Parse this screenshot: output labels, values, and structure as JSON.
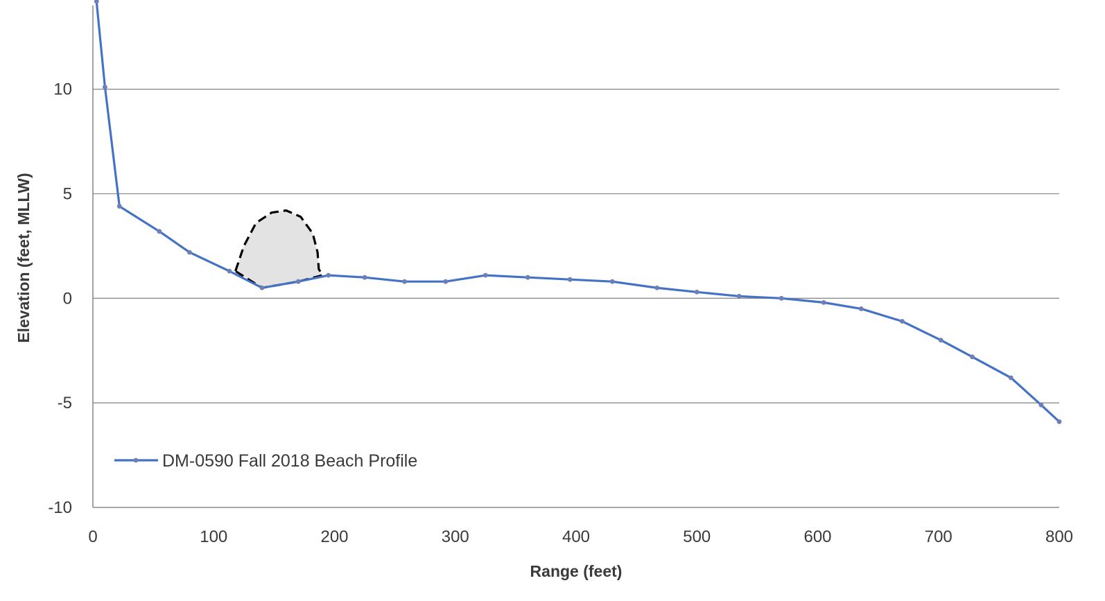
{
  "chart_data": {
    "type": "line",
    "title": "",
    "xlabel": "Range (feet)",
    "ylabel": "Elevation (feet, MLLW)",
    "xlim": [
      0,
      800
    ],
    "ylim": [
      -10,
      14
    ],
    "x_ticks": [
      "0",
      "100",
      "200",
      "300",
      "400",
      "500",
      "600",
      "700",
      "800"
    ],
    "y_ticks": [
      "-10",
      "-5",
      "0",
      "5",
      "10"
    ],
    "grid": "horizontal",
    "legend_position": "bottom-left",
    "colors": {
      "series": "#4472C4",
      "grid": "#8c8c8c",
      "annotation": "#000000",
      "annotation_fill": "#e3e3e3"
    },
    "series": [
      {
        "name": "DM-0590 Fall 2018 Beach Profile",
        "x": [
          3,
          10,
          22,
          55,
          80,
          113,
          140,
          170,
          195,
          225,
          258,
          292,
          325,
          360,
          395,
          430,
          467,
          500,
          535,
          570,
          605,
          636,
          670,
          702,
          728,
          760,
          785,
          800
        ],
        "y": [
          14.2,
          10.1,
          4.4,
          3.2,
          2.2,
          1.3,
          0.5,
          0.8,
          1.1,
          1.0,
          0.8,
          0.8,
          1.1,
          1.0,
          0.9,
          0.8,
          0.5,
          0.3,
          0.1,
          0.0,
          -0.2,
          -0.5,
          -1.1,
          -2.0,
          -2.8,
          -3.8,
          -5.1,
          -5.9
        ]
      }
    ],
    "annotation": {
      "style": "dashed",
      "x": [
        118,
        125,
        135,
        148,
        160,
        172,
        182,
        186,
        187,
        190,
        170,
        140
      ],
      "y": [
        1.3,
        2.5,
        3.6,
        4.1,
        4.2,
        3.9,
        3.1,
        2.2,
        1.4,
        1.1,
        0.8,
        0.5
      ]
    }
  }
}
